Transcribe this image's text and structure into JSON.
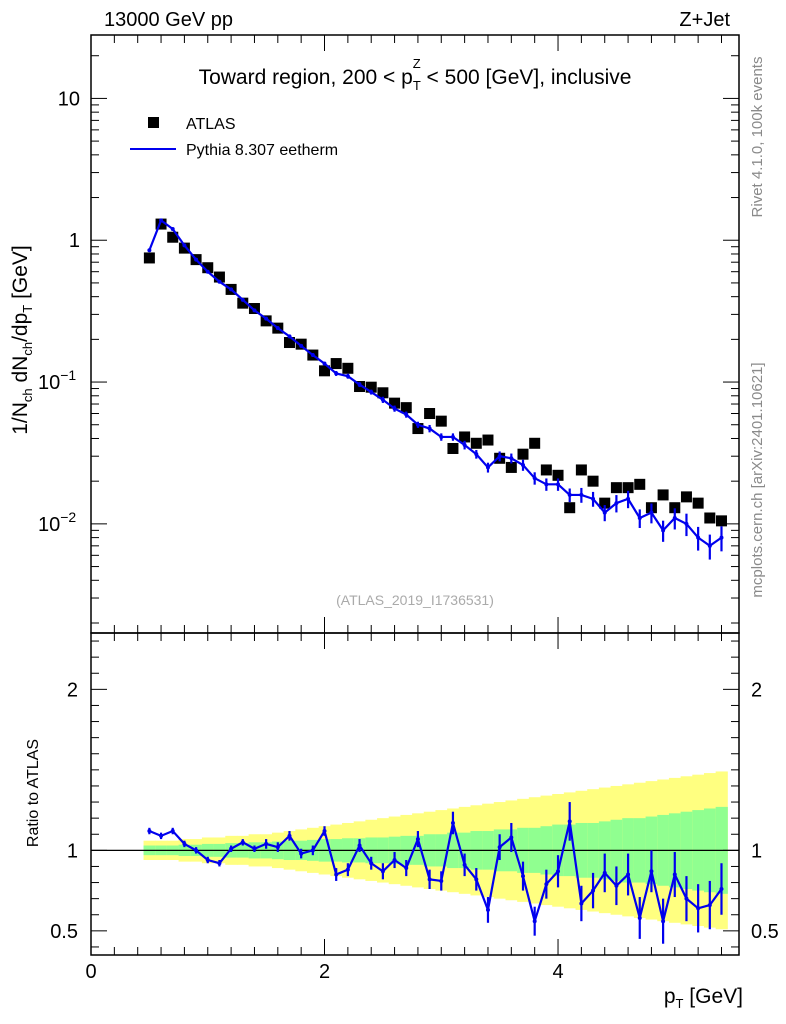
{
  "header": {
    "energy_label": "13000 GeV pp",
    "process_label": "Z+Jet"
  },
  "side_text": {
    "rivet": "Rivet 4.1.0,  100k events",
    "mcplots": "mcplots.cern.ch [arXiv:2401.10621]"
  },
  "chart_data": [
    {
      "type": "scatter",
      "panel": "main",
      "title_parts": {
        "prefix": "Toward region, 200 < p",
        "sub": "T",
        "sup": "Z",
        "suffix": " < 500 [GeV], inclusive"
      },
      "ylabel_parts": [
        "1/N",
        "ch",
        " dN",
        "ch",
        "/dp",
        "T",
        " [GeV]"
      ],
      "yscale": "log",
      "ylim": [
        0.0017,
        28
      ],
      "xlim": [
        0,
        5.55
      ],
      "y_ticks": [
        {
          "value": 10,
          "label": "10"
        },
        {
          "value": 1,
          "label": "1"
        },
        {
          "value": 0.1,
          "label": "10",
          "exp": "−1"
        },
        {
          "value": 0.01,
          "label": "10",
          "exp": "−2"
        }
      ],
      "reference": "(ATLAS_2019_I1736531)",
      "legend": [
        {
          "name": "ATLAS",
          "marker": "square",
          "color": "#000000"
        },
        {
          "name": "Pythia 8.307 eetherm",
          "marker": "line",
          "color": "#0000ee"
        }
      ],
      "x": [
        0.5,
        0.6,
        0.7,
        0.8,
        0.9,
        1.0,
        1.1,
        1.2,
        1.3,
        1.4,
        1.5,
        1.6,
        1.7,
        1.8,
        1.9,
        2.0,
        2.1,
        2.2,
        2.3,
        2.4,
        2.5,
        2.6,
        2.7,
        2.8,
        2.9,
        3.0,
        3.1,
        3.2,
        3.3,
        3.4,
        3.5,
        3.6,
        3.7,
        3.8,
        3.9,
        4.0,
        4.1,
        4.2,
        4.3,
        4.4,
        4.5,
        4.6,
        4.7,
        4.8,
        4.9,
        5.0,
        5.1,
        5.2,
        5.3,
        5.4
      ],
      "series": [
        {
          "name": "ATLAS",
          "values": [
            0.75,
            1.3,
            1.05,
            0.88,
            0.73,
            0.64,
            0.55,
            0.45,
            0.36,
            0.33,
            0.27,
            0.24,
            0.19,
            0.185,
            0.155,
            0.12,
            0.135,
            0.125,
            0.093,
            0.092,
            0.084,
            0.071,
            0.066,
            0.047,
            0.06,
            0.053,
            0.034,
            0.041,
            0.037,
            0.039,
            0.029,
            0.025,
            0.031,
            0.037,
            0.024,
            0.022,
            0.013,
            0.024,
            0.02,
            0.014,
            0.018,
            0.018,
            0.019,
            0.013,
            0.016,
            0.013,
            0.0155,
            0.014,
            0.011,
            0.0105
          ]
        },
        {
          "name": "Pythia 8.307 eetherm",
          "values": [
            0.85,
            1.38,
            1.2,
            0.92,
            0.73,
            0.6,
            0.51,
            0.45,
            0.38,
            0.32,
            0.28,
            0.24,
            0.21,
            0.18,
            0.155,
            0.135,
            0.115,
            0.11,
            0.096,
            0.085,
            0.075,
            0.065,
            0.059,
            0.05,
            0.047,
            0.041,
            0.041,
            0.036,
            0.031,
            0.025,
            0.03,
            0.029,
            0.026,
            0.021,
            0.019,
            0.019,
            0.016,
            0.016,
            0.015,
            0.012,
            0.014,
            0.015,
            0.011,
            0.012,
            0.009,
            0.011,
            0.01,
            0.008,
            0.007,
            0.008
          ],
          "rel_err": [
            0.02,
            0.02,
            0.02,
            0.02,
            0.02,
            0.02,
            0.02,
            0.02,
            0.02,
            0.02,
            0.03,
            0.03,
            0.03,
            0.03,
            0.03,
            0.03,
            0.04,
            0.04,
            0.04,
            0.04,
            0.05,
            0.05,
            0.05,
            0.05,
            0.06,
            0.06,
            0.06,
            0.07,
            0.07,
            0.08,
            0.08,
            0.08,
            0.09,
            0.1,
            0.1,
            0.1,
            0.11,
            0.12,
            0.12,
            0.13,
            0.14,
            0.14,
            0.15,
            0.16,
            0.17,
            0.17,
            0.18,
            0.19,
            0.2,
            0.2
          ]
        }
      ]
    },
    {
      "type": "line",
      "panel": "ratio",
      "ylabel": "Ratio to ATLAS",
      "ylim": [
        0.35,
        2.35
      ],
      "xlim": [
        0,
        5.55
      ],
      "xlabel_parts": [
        "p",
        "T",
        " [GeV]"
      ],
      "x_ticks": [
        {
          "value": 0,
          "label": "0"
        },
        {
          "value": 2,
          "label": "2"
        },
        {
          "value": 4,
          "label": "4"
        }
      ],
      "y_ticks": [
        {
          "value": 0.5,
          "label": "0.5"
        },
        {
          "value": 1,
          "label": "1"
        },
        {
          "value": 2,
          "label": "2"
        }
      ],
      "x": [
        0.5,
        0.6,
        0.7,
        0.8,
        0.9,
        1.0,
        1.1,
        1.2,
        1.3,
        1.4,
        1.5,
        1.6,
        1.7,
        1.8,
        1.9,
        2.0,
        2.1,
        2.2,
        2.3,
        2.4,
        2.5,
        2.6,
        2.7,
        2.8,
        2.9,
        3.0,
        3.1,
        3.2,
        3.3,
        3.4,
        3.5,
        3.6,
        3.7,
        3.8,
        3.9,
        4.0,
        4.1,
        4.2,
        4.3,
        4.4,
        4.5,
        4.6,
        4.7,
        4.8,
        4.9,
        5.0,
        5.1,
        5.2,
        5.3,
        5.4
      ],
      "bin_width": 0.1,
      "band_stat_syst_half": [
        0.03,
        0.03,
        0.03,
        0.035,
        0.035,
        0.04,
        0.04,
        0.045,
        0.045,
        0.05,
        0.05,
        0.055,
        0.06,
        0.06,
        0.065,
        0.07,
        0.07,
        0.075,
        0.075,
        0.08,
        0.08,
        0.085,
        0.09,
        0.09,
        0.1,
        0.1,
        0.11,
        0.11,
        0.12,
        0.12,
        0.13,
        0.13,
        0.14,
        0.14,
        0.15,
        0.16,
        0.16,
        0.17,
        0.17,
        0.18,
        0.19,
        0.2,
        0.2,
        0.21,
        0.22,
        0.23,
        0.24,
        0.25,
        0.26,
        0.27
      ],
      "band_total_half": [
        0.06,
        0.06,
        0.06,
        0.07,
        0.07,
        0.08,
        0.08,
        0.09,
        0.09,
        0.1,
        0.1,
        0.11,
        0.12,
        0.13,
        0.14,
        0.15,
        0.16,
        0.17,
        0.18,
        0.19,
        0.2,
        0.21,
        0.22,
        0.23,
        0.24,
        0.25,
        0.26,
        0.27,
        0.28,
        0.29,
        0.3,
        0.31,
        0.32,
        0.33,
        0.34,
        0.35,
        0.36,
        0.37,
        0.38,
        0.39,
        0.4,
        0.41,
        0.42,
        0.43,
        0.44,
        0.45,
        0.46,
        0.47,
        0.48,
        0.49
      ],
      "series": [
        {
          "name": "Pythia 8.307 eetherm / ATLAS",
          "values": [
            1.12,
            1.09,
            1.12,
            1.04,
            1.0,
            0.94,
            0.92,
            1.01,
            1.05,
            1.01,
            1.04,
            1.02,
            1.09,
            0.98,
            1.0,
            1.12,
            0.85,
            0.88,
            1.03,
            0.92,
            0.87,
            0.94,
            0.89,
            1.07,
            0.82,
            0.81,
            1.17,
            0.91,
            0.82,
            0.63,
            1.02,
            1.08,
            0.84,
            0.56,
            0.79,
            0.87,
            1.18,
            0.67,
            0.75,
            0.86,
            0.78,
            0.85,
            0.58,
            0.87,
            0.56,
            0.85,
            0.7,
            0.64,
            0.66,
            0.76
          ],
          "abs_err": [
            0.02,
            0.02,
            0.02,
            0.02,
            0.02,
            0.02,
            0.02,
            0.02,
            0.02,
            0.02,
            0.03,
            0.03,
            0.03,
            0.03,
            0.03,
            0.03,
            0.04,
            0.04,
            0.04,
            0.04,
            0.05,
            0.05,
            0.05,
            0.05,
            0.06,
            0.06,
            0.07,
            0.07,
            0.07,
            0.08,
            0.08,
            0.09,
            0.09,
            0.09,
            0.09,
            0.1,
            0.12,
            0.11,
            0.11,
            0.12,
            0.12,
            0.13,
            0.13,
            0.13,
            0.14,
            0.14,
            0.14,
            0.15,
            0.15,
            0.16
          ],
          "color": "#0000ee"
        }
      ]
    }
  ]
}
